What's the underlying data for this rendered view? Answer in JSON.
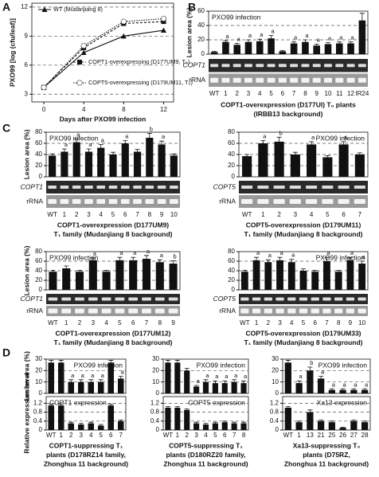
{
  "panel_labels": [
    "A",
    "B",
    "C",
    "D"
  ],
  "chart_data": [
    {
      "type": "line",
      "xlabel": "Days after PXO99 infection",
      "ylabel": "PXO99 [log (cfu/leaf)]",
      "x": [
        0,
        4,
        8,
        12
      ],
      "xlim": [
        -1.2,
        13
      ],
      "xticks": [
        0,
        4,
        8,
        12
      ],
      "ylim": [
        2.2,
        12.4
      ],
      "yticks": [
        3,
        6,
        9,
        12
      ],
      "grid": true,
      "series": [
        {
          "name": "WT (Mudanjiang 8)",
          "color": "#111",
          "marker": "triangle",
          "values": [
            3.7,
            7.3,
            9.0,
            9.6
          ]
        },
        {
          "name": "COPT1-overexpressing (D177UM9, T₀)",
          "color": "#111",
          "marker": "square",
          "values": [
            3.7,
            7.8,
            10.3,
            10.5
          ]
        },
        {
          "name": "COPT5-overexpressing (D179UM11, T₀)",
          "color": "#111",
          "marker": "circle",
          "values": [
            3.7,
            8.0,
            10.5,
            10.8
          ]
        }
      ]
    },
    {
      "type": "bar",
      "title": "PXO99 infection",
      "ylabel": "Lesion area (%)",
      "color": "#111",
      "grid": true,
      "categories": [
        "WT",
        "1",
        "2",
        "3",
        "4",
        "5",
        "6",
        "7",
        "8",
        "9",
        "10",
        "11",
        "12",
        "IR24"
      ],
      "values": [
        3,
        17,
        13,
        17,
        18,
        22,
        4,
        15,
        17,
        12,
        14,
        15,
        15,
        47
      ],
      "errors": [
        1,
        2,
        2,
        3,
        3,
        4,
        1,
        2,
        3,
        2,
        2,
        2,
        2,
        10
      ],
      "letters": [
        null,
        "a",
        "a",
        "a",
        "a",
        "a",
        null,
        "a",
        "a",
        "a",
        "a",
        "a",
        "a",
        null
      ],
      "ylim": [
        0,
        60
      ],
      "yticks": [
        0,
        20,
        40,
        60
      ],
      "gel_labels": [
        "COPT1",
        "rRNA"
      ],
      "xlabel": [
        "COPT1-overexpression (D177UI) T₀ plants",
        "(IRBB13 background)"
      ]
    },
    {
      "type": "bar",
      "title": "PXO99 infection",
      "ylabel": "Lesion area (%)",
      "color": "#111",
      "grid": true,
      "categories": [
        "WT",
        "1",
        "2",
        "3",
        "4",
        "5",
        "6",
        "7",
        "8",
        "9",
        "10"
      ],
      "values": [
        38,
        45,
        62,
        45,
        52,
        40,
        60,
        45,
        70,
        58,
        38
      ],
      "errors": [
        3,
        5,
        6,
        5,
        6,
        4,
        5,
        4,
        8,
        6,
        3
      ],
      "letters": [
        null,
        "a",
        "a",
        "a",
        "a",
        null,
        "a",
        null,
        "b",
        "a",
        null
      ],
      "ylim": [
        0,
        80
      ],
      "yticks": [
        0,
        20,
        40,
        60,
        80
      ],
      "gel_labels": [
        "COPT1",
        "rRNA"
      ],
      "xlabel": [
        "COPT1-overexpression (D177UM9)",
        "T₁ family (Mudanjiang 8 background)"
      ]
    },
    {
      "type": "bar",
      "title": "PXO99 infection",
      "color": "#111",
      "grid": true,
      "categories": [
        "WT",
        "1",
        "2",
        "3",
        "4",
        "5",
        "6",
        "7"
      ],
      "values": [
        37,
        60,
        63,
        40,
        58,
        35,
        58,
        40
      ],
      "errors": [
        3,
        5,
        8,
        4,
        5,
        3,
        5,
        3
      ],
      "letters": [
        null,
        "a",
        "b",
        null,
        "a",
        null,
        "a",
        null
      ],
      "ylim": [
        0,
        80
      ],
      "yticks": [
        0,
        20,
        40,
        60,
        80
      ],
      "gel_labels": [
        "COPT5",
        "rRNA"
      ],
      "xlabel": [
        "COPT5-overexpression (D179UM11)",
        "T₁ family (Mudanjiang 8 background)"
      ]
    },
    {
      "type": "bar",
      "title": "PXO99 infection",
      "ylabel": "Lesion area (%)",
      "color": "#111",
      "grid": true,
      "categories": [
        "WT",
        "1",
        "2",
        "3",
        "4",
        "5",
        "6",
        "7",
        "8",
        "9"
      ],
      "values": [
        38,
        45,
        38,
        62,
        38,
        62,
        62,
        65,
        58,
        55
      ],
      "errors": [
        3,
        5,
        3,
        5,
        3,
        6,
        6,
        7,
        5,
        6
      ],
      "letters": [
        null,
        null,
        null,
        "a",
        null,
        "a",
        "a",
        "a",
        "a",
        "b"
      ],
      "ylim": [
        0,
        80
      ],
      "yticks": [
        0,
        20,
        40,
        60,
        80
      ],
      "gel_labels": [
        "COPT1",
        "rRNA"
      ],
      "xlabel": [
        "COPT1-overexpression (D177UM12)",
        "T₁ family (Mudanjiang 8 background)"
      ]
    },
    {
      "type": "bar",
      "title": "PXO99 infection",
      "color": "#111",
      "grid": true,
      "categories": [
        "WT",
        "1",
        "2",
        "3",
        "4",
        "5",
        "6",
        "7",
        "8",
        "9",
        "10"
      ],
      "values": [
        38,
        62,
        58,
        62,
        58,
        40,
        38,
        60,
        38,
        62,
        55
      ],
      "errors": [
        3,
        6,
        5,
        6,
        6,
        4,
        3,
        8,
        3,
        6,
        5
      ],
      "letters": [
        null,
        "a",
        "a",
        "a",
        "a",
        null,
        null,
        "a",
        null,
        "a",
        "a"
      ],
      "ylim": [
        0,
        80
      ],
      "yticks": [
        0,
        20,
        40,
        60,
        80
      ],
      "gel_labels": [
        "COPT5",
        "rRNA"
      ],
      "xlabel": [
        "COPT5-overexpression (D179UM33)",
        "T₁ family (Mudanjiang 8 background)"
      ]
    },
    {
      "type": "bar",
      "title": "PXO99 infection",
      "ylabel": "Lesion area (%)",
      "color": "#111",
      "grid": true,
      "values": [
        27,
        27,
        10,
        10,
        10,
        10,
        27,
        13
      ],
      "errors": [
        2,
        2,
        2,
        2,
        2,
        2,
        2,
        2
      ],
      "letters": [
        null,
        null,
        "a",
        "a",
        "a",
        "a",
        null,
        "a"
      ],
      "ylim": [
        0,
        30
      ],
      "yticks": [
        0,
        10,
        20,
        30
      ]
    },
    {
      "type": "bar",
      "title": "COPT1 expression",
      "ylabel": "Relative expression level",
      "color": "#111",
      "grid": true,
      "categories": [
        "WT",
        "1",
        "2",
        "3",
        "4",
        "5",
        "6",
        "7"
      ],
      "values": [
        1.1,
        1.1,
        0.3,
        0.25,
        0.3,
        0.2,
        1.1,
        0.4
      ],
      "errors": [
        0.05,
        0.05,
        0.05,
        0.05,
        0.05,
        0.05,
        0.05,
        0.05
      ],
      "ylim": [
        0,
        1.5
      ],
      "yticks": [
        0,
        0.4,
        0.8,
        1.2
      ],
      "xlabel": [
        "COPT1-suppressing T₁",
        "plants (D178RZ14 family,",
        "Zhonghua 11 background)"
      ]
    },
    {
      "type": "bar",
      "title": "PXO99 infection",
      "color": "#111",
      "grid": true,
      "values": [
        27,
        27,
        20,
        6,
        10,
        9,
        9,
        10,
        9
      ],
      "errors": [
        2,
        2,
        2,
        1,
        2,
        2,
        2,
        2,
        2
      ],
      "letters": [
        null,
        null,
        null,
        "a",
        "a",
        "a",
        "a",
        "a",
        "a"
      ],
      "ylim": [
        0,
        30
      ],
      "yticks": [
        0,
        10,
        20,
        30
      ]
    },
    {
      "type": "bar",
      "title": "COPT5 expression",
      "color": "#111",
      "grid": true,
      "categories": [
        "WT",
        "1",
        "2",
        "3",
        "4",
        "5",
        "6",
        "7",
        "8"
      ],
      "values": [
        1.0,
        1.0,
        0.9,
        0.3,
        0.25,
        0.3,
        0.35,
        0.3,
        0.3
      ],
      "errors": [
        0.05,
        0.05,
        0.05,
        0.05,
        0.05,
        0.05,
        0.05,
        0.05,
        0.05
      ],
      "ylim": [
        0,
        1.5
      ],
      "yticks": [
        0,
        0.4,
        0.8,
        1.2
      ],
      "xlabel": [
        "COPT5-suppressing T₁",
        "plants (D180RZ20 family,",
        "Zhonghua 11 background)"
      ]
    },
    {
      "type": "bar",
      "title": "PXO99 infection",
      "color": "#111",
      "grid": true,
      "values": [
        27,
        9,
        20,
        13,
        3,
        3,
        3,
        3
      ],
      "errors": [
        2,
        2,
        3,
        2,
        1,
        1,
        1,
        1
      ],
      "letters": [
        null,
        "a",
        "b",
        "a",
        "a",
        "a",
        "a",
        "a"
      ],
      "ylim": [
        0,
        30
      ],
      "yticks": [
        0,
        10,
        20,
        30
      ]
    },
    {
      "type": "bar",
      "title": "Xa13 expression",
      "color": "#111",
      "grid": true,
      "categories": [
        "WT",
        "1",
        "13",
        "21",
        "25",
        "26",
        "27",
        "28"
      ],
      "values": [
        1.0,
        0.35,
        0.8,
        0.4,
        0.35,
        0.1,
        0.4,
        0.35
      ],
      "errors": [
        0.05,
        0.05,
        0.1,
        0.05,
        0.05,
        0.03,
        0.05,
        0.05
      ],
      "ylim": [
        0,
        1.5
      ],
      "yticks": [
        0,
        0.4,
        0.8,
        1.2
      ],
      "xlabel": [
        "Xa13-suppressing T₀",
        "plants (D75RZ,",
        "Zhonghua 11 background)"
      ]
    }
  ]
}
